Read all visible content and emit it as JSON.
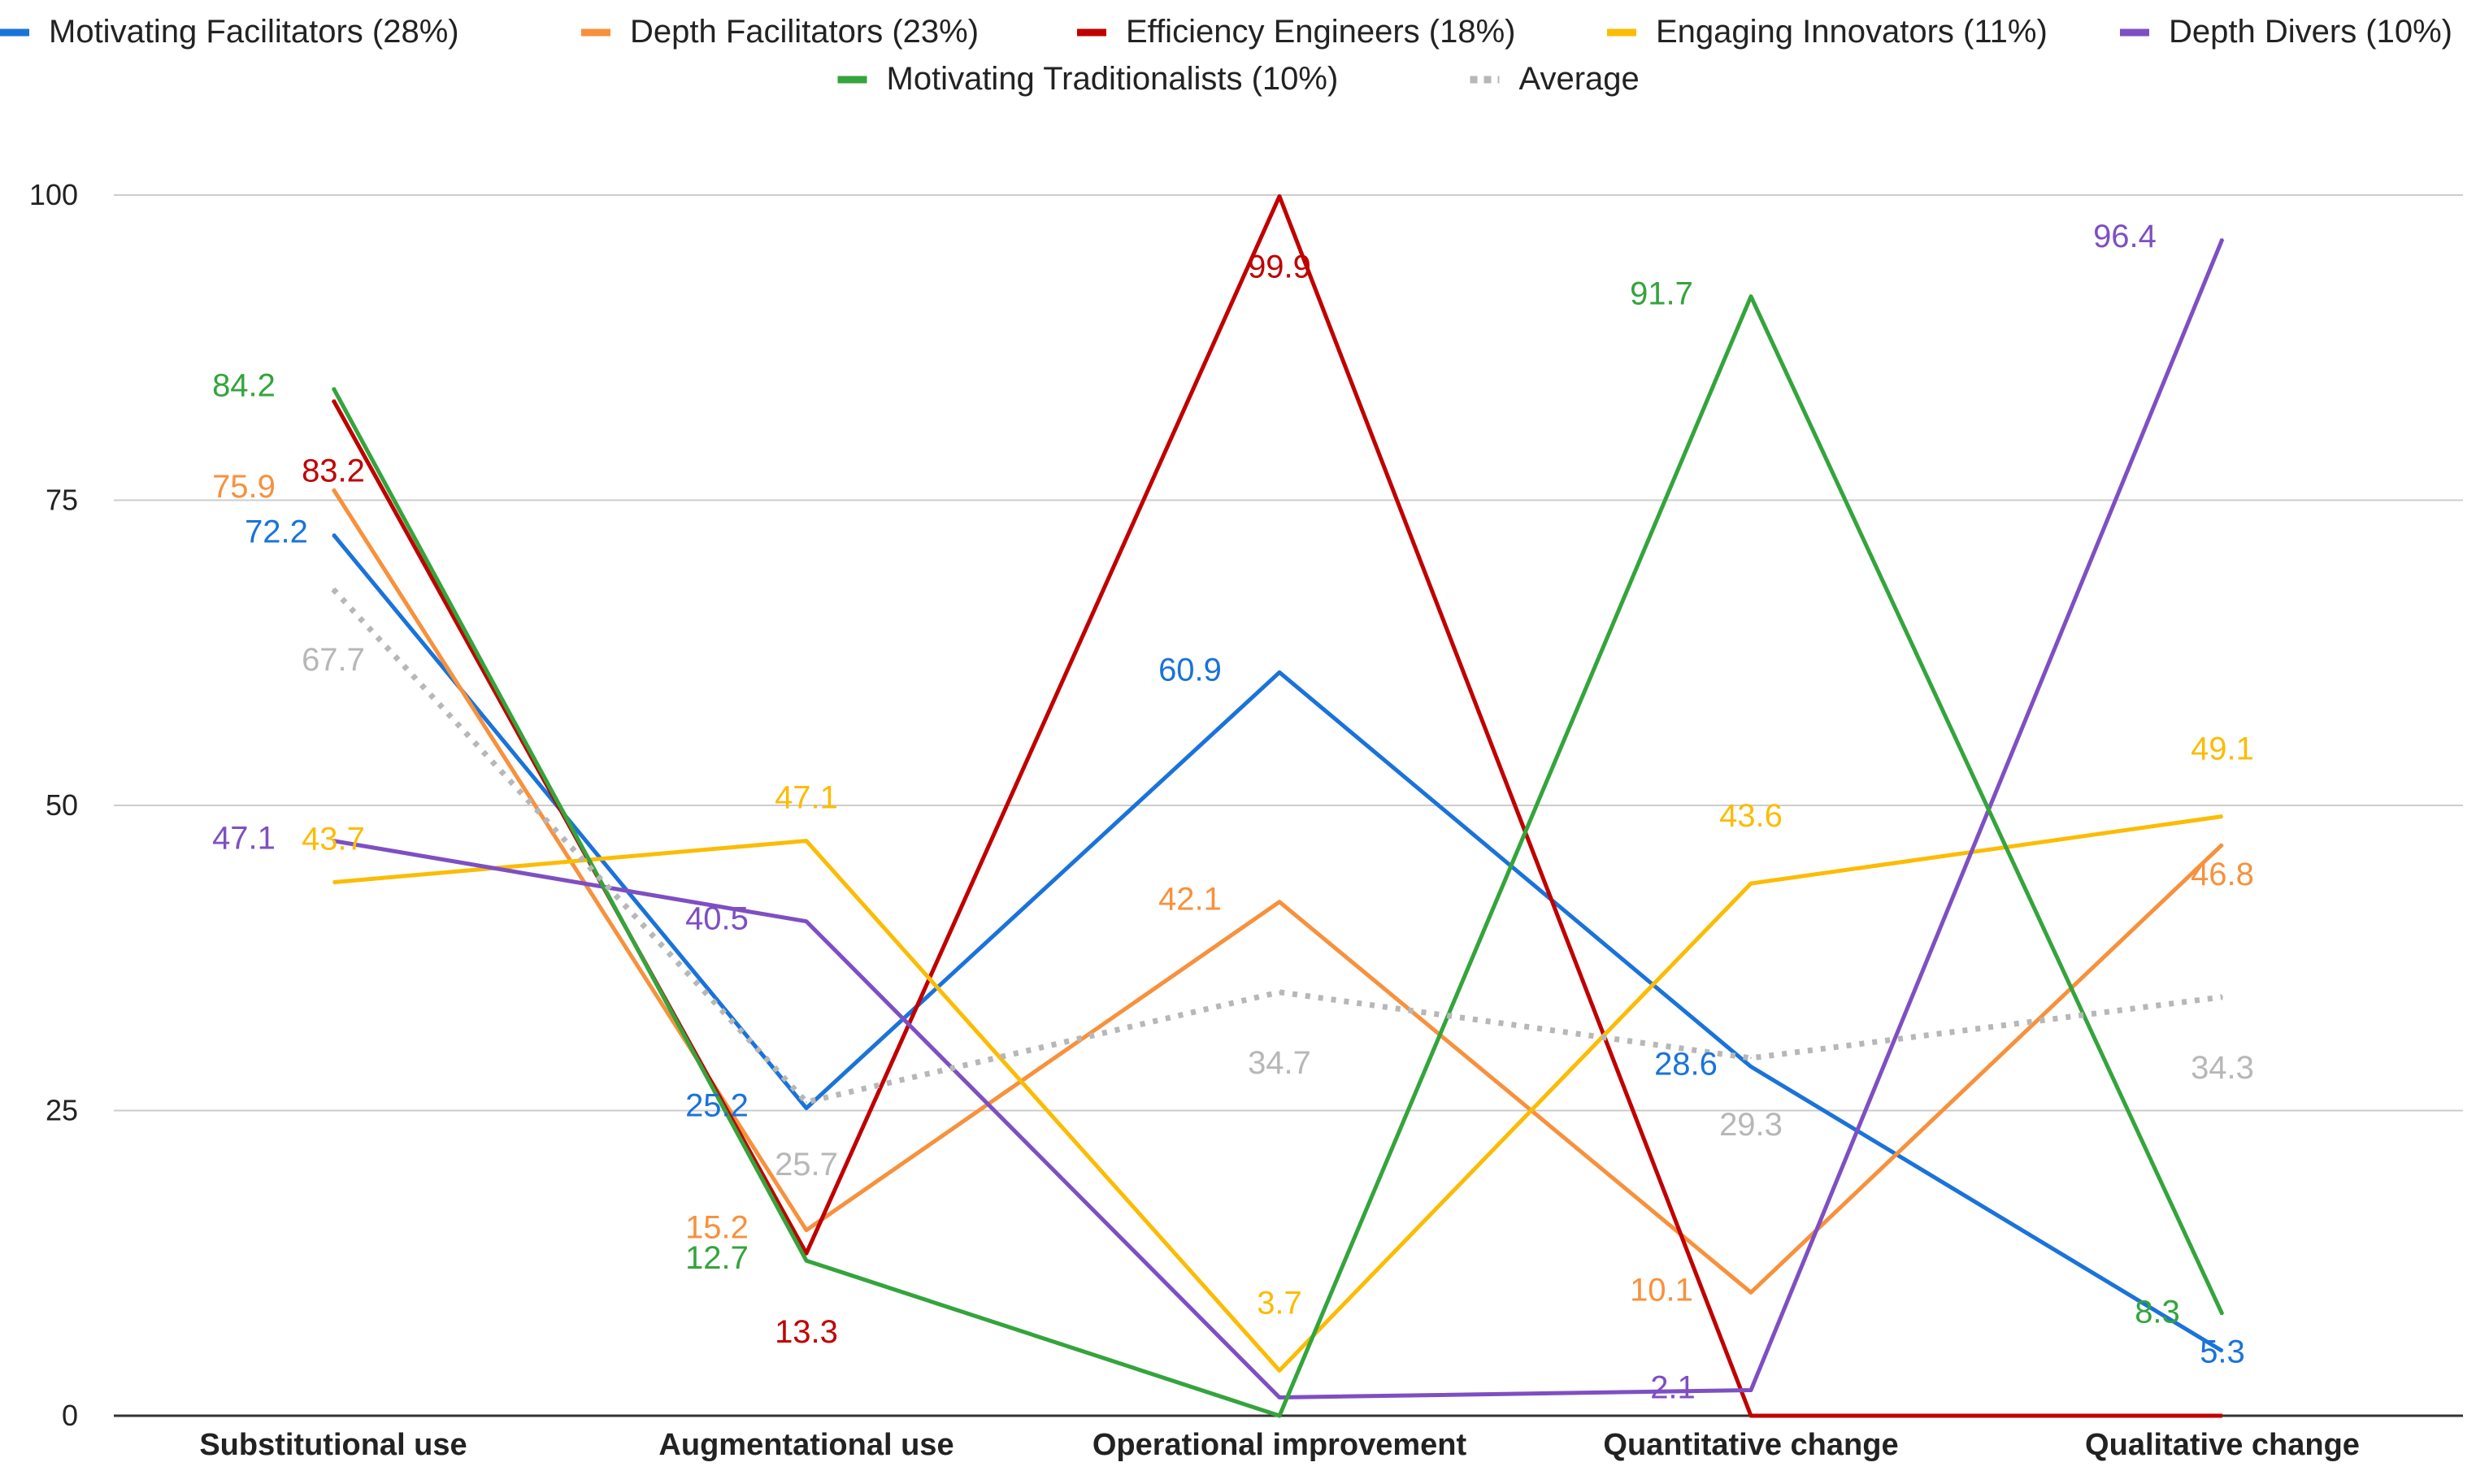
{
  "chart_data": {
    "type": "line",
    "title": "",
    "xlabel": "",
    "ylabel": "",
    "ylim": [
      0,
      100
    ],
    "yticks": [
      0,
      25,
      50,
      75,
      100
    ],
    "grid": true,
    "legend_position": "top",
    "categories": [
      "Substitutional use",
      "Augmentational use",
      "Operational improvement",
      "Quantitative change",
      "Qualitative change"
    ],
    "series": [
      {
        "name": "Motivating Facilitators (28%)",
        "color": "#1a73d9",
        "dashed": false,
        "values": [
          72.2,
          25.2,
          60.9,
          28.6,
          5.3
        ],
        "labels": [
          "72.2",
          "25.2",
          "60.9",
          "28.6",
          "5.3"
        ]
      },
      {
        "name": "Depth Facilitators (23%)",
        "color": "#f7913d",
        "dashed": false,
        "values": [
          75.9,
          15.2,
          42.1,
          10.1,
          46.8
        ],
        "labels": [
          "75.9",
          "15.2",
          "42.1",
          "10.1",
          "46.8"
        ]
      },
      {
        "name": "Efficiency Engineers (18%)",
        "color": "#c00000",
        "dashed": false,
        "values": [
          83.2,
          13.3,
          99.9,
          0,
          0
        ],
        "labels": [
          "83.2",
          "13.3",
          "99.9",
          "",
          ""
        ]
      },
      {
        "name": "Engaging Innovators (11%)",
        "color": "#fbbc04",
        "dashed": false,
        "values": [
          43.7,
          47.1,
          3.7,
          43.6,
          49.1
        ],
        "labels": [
          "43.7",
          "47.1",
          "3.7",
          "43.6",
          "49.1"
        ]
      },
      {
        "name": "Depth Divers (10%)",
        "color": "#7e4fc2",
        "dashed": false,
        "values": [
          47.1,
          40.5,
          1.5,
          2.1,
          96.4
        ],
        "labels": [
          "47.1",
          "40.5",
          "",
          "2.1",
          "96.4"
        ]
      },
      {
        "name": "Motivating Traditionalists (10%)",
        "color": "#34a43c",
        "dashed": false,
        "values": [
          84.2,
          12.7,
          0,
          91.7,
          8.3
        ],
        "labels": [
          "84.2",
          "12.7",
          "",
          "91.7",
          "8.3"
        ]
      },
      {
        "name": "Average",
        "color": "#b7b7b7",
        "dashed": true,
        "values": [
          67.7,
          25.7,
          34.7,
          29.3,
          34.3
        ],
        "labels": [
          "67.7",
          "25.7",
          "34.7",
          "29.3",
          "34.3"
        ]
      }
    ]
  }
}
